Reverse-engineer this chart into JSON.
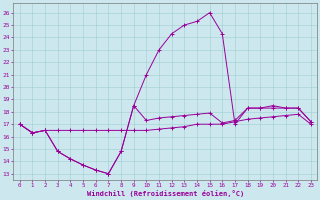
{
  "xlabel": "Windchill (Refroidissement éolien,°C)",
  "bg_color": "#cce8ee",
  "line_color": "#990099",
  "xlim": [
    -0.5,
    23.5
  ],
  "ylim": [
    12.5,
    26.8
  ],
  "xticks": [
    0,
    1,
    2,
    3,
    4,
    5,
    6,
    7,
    8,
    9,
    10,
    11,
    12,
    13,
    14,
    15,
    16,
    17,
    18,
    19,
    20,
    21,
    22,
    23
  ],
  "yticks": [
    13,
    14,
    15,
    16,
    17,
    18,
    19,
    20,
    21,
    22,
    23,
    24,
    25,
    26
  ],
  "series1_x": [
    0,
    1,
    2,
    3,
    4,
    5,
    6,
    7,
    8,
    9,
    10,
    11,
    12,
    13,
    14,
    15,
    16,
    17,
    18,
    19,
    20,
    21,
    22,
    23
  ],
  "series1_y": [
    17.0,
    16.3,
    16.5,
    16.5,
    16.5,
    16.5,
    16.5,
    16.5,
    16.5,
    16.5,
    16.5,
    16.6,
    16.7,
    16.8,
    17.0,
    17.0,
    17.0,
    17.2,
    17.4,
    17.5,
    17.6,
    17.7,
    17.8,
    17.0
  ],
  "series2_x": [
    0,
    1,
    2,
    3,
    4,
    5,
    6,
    7,
    8,
    9,
    10,
    11,
    12,
    13,
    14,
    15,
    16,
    17,
    18,
    19,
    20,
    21,
    22,
    23
  ],
  "series2_y": [
    17.0,
    16.3,
    16.5,
    14.8,
    14.2,
    13.7,
    13.3,
    13.0,
    14.8,
    18.5,
    17.3,
    17.5,
    17.6,
    17.7,
    17.8,
    17.9,
    17.1,
    17.3,
    18.3,
    18.3,
    18.3,
    18.3,
    18.3,
    17.2
  ],
  "series3_x": [
    0,
    1,
    2,
    3,
    4,
    5,
    6,
    7,
    8,
    9,
    10,
    11,
    12,
    13,
    14,
    15,
    16,
    17,
    18,
    19,
    20,
    21,
    22,
    23
  ],
  "series3_y": [
    17.0,
    16.3,
    16.5,
    14.8,
    14.2,
    13.7,
    13.3,
    13.0,
    14.8,
    18.5,
    21.0,
    23.0,
    24.3,
    25.0,
    25.3,
    26.0,
    24.3,
    17.0,
    18.3,
    18.3,
    18.5,
    18.3,
    18.3,
    17.2
  ]
}
